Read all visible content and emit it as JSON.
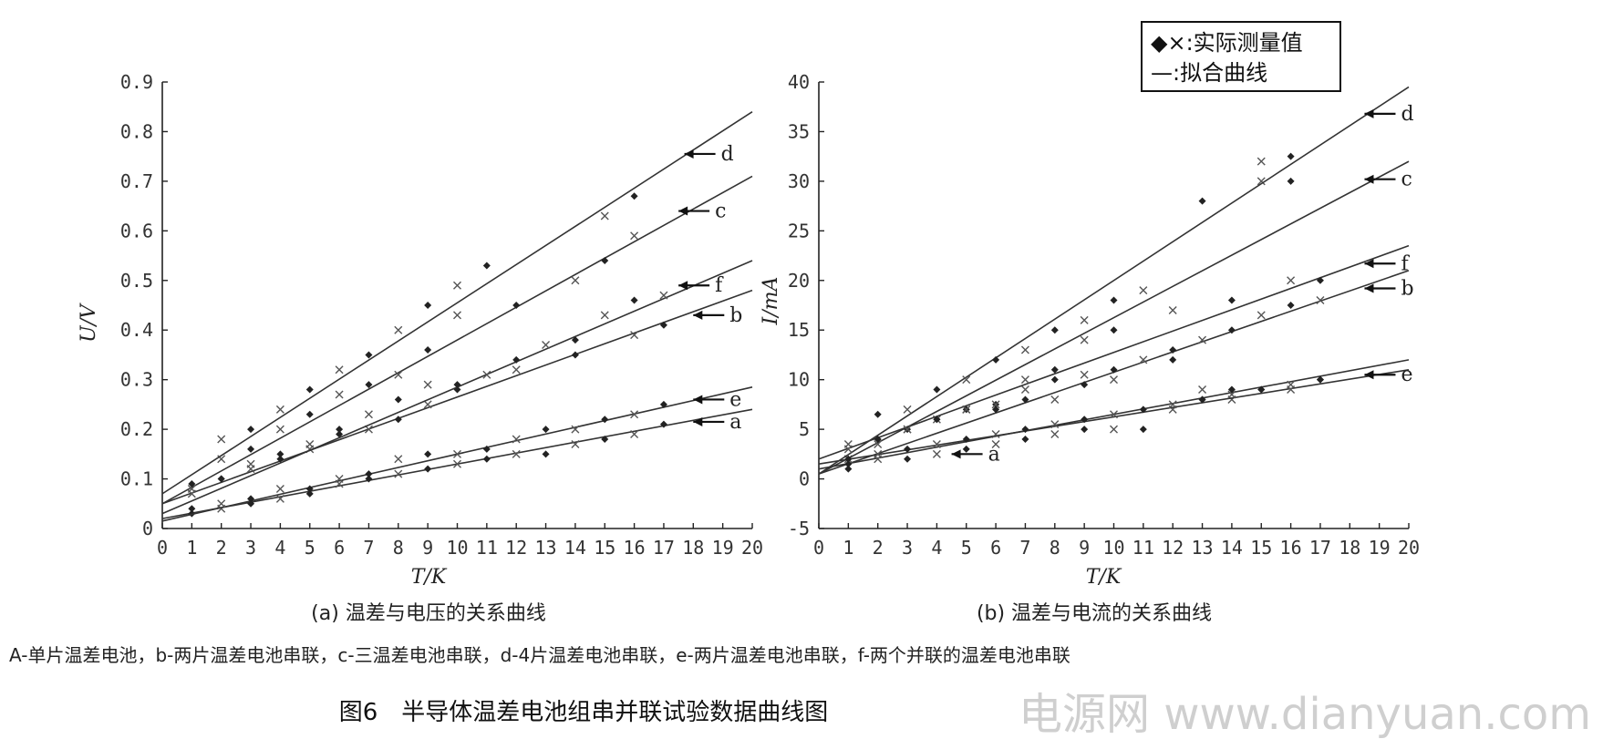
{
  "legend": {
    "measured": "◆×:实际测量值",
    "fitted": "—:拟合曲线"
  },
  "note": "A-单片温差电池，b-两片温差电池串联，c-三温差电池串联，d-4片温差电池串联，e-两片温差电池串联，f-两个并联的温差电池串联",
  "figure_title": "图6　半导体温差电池组串并联试验数据曲线图",
  "watermark": "电源网  www.dianyuan.com",
  "chart_data": [
    {
      "id": "a",
      "type": "scatter",
      "caption": "(a) 温差与电压的关系曲线",
      "xlabel": "T/K",
      "ylabel": "U/V",
      "xlim": [
        0,
        20
      ],
      "ylim": [
        0,
        0.9
      ],
      "xticks": [
        "0",
        "1",
        "2",
        "3",
        "4",
        "5",
        "6",
        "7",
        "8",
        "9",
        "10",
        "11",
        "12",
        "13",
        "14",
        "15",
        "16",
        "17",
        "18",
        "19",
        "20"
      ],
      "yticks": [
        "0",
        "0.1",
        "0.2",
        "0.3",
        "0.4",
        "0.5",
        "0.6",
        "0.7",
        "0.8",
        "0.9"
      ],
      "series": [
        {
          "name": "a",
          "fit": [
            [
              0,
              0.02
            ],
            [
              20,
              0.24
            ]
          ],
          "label_at": [
            18,
            0.215
          ],
          "points": [
            [
              1,
              0.03
            ],
            [
              2,
              0.04
            ],
            [
              3,
              0.05
            ],
            [
              4,
              0.06
            ],
            [
              5,
              0.07
            ],
            [
              6,
              0.09
            ],
            [
              7,
              0.1
            ],
            [
              8,
              0.11
            ],
            [
              9,
              0.12
            ],
            [
              10,
              0.13
            ],
            [
              11,
              0.14
            ],
            [
              12,
              0.15
            ],
            [
              13,
              0.15
            ],
            [
              14,
              0.17
            ],
            [
              15,
              0.18
            ],
            [
              16,
              0.19
            ],
            [
              17,
              0.21
            ]
          ]
        },
        {
          "name": "b",
          "fit": [
            [
              0,
              0.05
            ],
            [
              20,
              0.48
            ]
          ],
          "label_at": [
            18,
            0.43
          ],
          "points": [
            [
              1,
              0.07
            ],
            [
              2,
              0.1
            ],
            [
              3,
              0.12
            ],
            [
              4,
              0.14
            ],
            [
              5,
              0.16
            ],
            [
              6,
              0.19
            ],
            [
              7,
              0.2
            ],
            [
              8,
              0.22
            ],
            [
              9,
              0.25
            ],
            [
              10,
              0.28
            ],
            [
              12,
              0.32
            ],
            [
              14,
              0.35
            ],
            [
              16,
              0.39
            ],
            [
              17,
              0.41
            ]
          ]
        },
        {
          "name": "c",
          "fit": [
            [
              0,
              0.05
            ],
            [
              20,
              0.71
            ]
          ],
          "label_at": [
            17.5,
            0.64
          ],
          "points": [
            [
              1,
              0.09
            ],
            [
              2,
              0.14
            ],
            [
              3,
              0.16
            ],
            [
              4,
              0.2
            ],
            [
              5,
              0.23
            ],
            [
              6,
              0.27
            ],
            [
              7,
              0.29
            ],
            [
              8,
              0.31
            ],
            [
              9,
              0.36
            ],
            [
              10,
              0.43
            ],
            [
              12,
              0.45
            ],
            [
              14,
              0.5
            ],
            [
              15,
              0.54
            ],
            [
              16,
              0.59
            ]
          ]
        },
        {
          "name": "d",
          "fit": [
            [
              0,
              0.07
            ],
            [
              20,
              0.84
            ]
          ],
          "label_at": [
            17.7,
            0.755
          ],
          "points": [
            [
              2,
              0.18
            ],
            [
              3,
              0.2
            ],
            [
              4,
              0.24
            ],
            [
              5,
              0.28
            ],
            [
              6,
              0.32
            ],
            [
              7,
              0.35
            ],
            [
              8,
              0.4
            ],
            [
              9,
              0.45
            ],
            [
              10,
              0.49
            ],
            [
              11,
              0.53
            ],
            [
              15,
              0.63
            ],
            [
              16,
              0.67
            ]
          ]
        },
        {
          "name": "e",
          "fit": [
            [
              0,
              0.015
            ],
            [
              20,
              0.285
            ]
          ],
          "label_at": [
            18,
            0.26
          ],
          "points": [
            [
              1,
              0.04
            ],
            [
              2,
              0.05
            ],
            [
              3,
              0.06
            ],
            [
              4,
              0.08
            ],
            [
              5,
              0.08
            ],
            [
              6,
              0.1
            ],
            [
              7,
              0.11
            ],
            [
              8,
              0.14
            ],
            [
              9,
              0.15
            ],
            [
              10,
              0.15
            ],
            [
              11,
              0.16
            ],
            [
              12,
              0.18
            ],
            [
              13,
              0.2
            ],
            [
              14,
              0.2
            ],
            [
              15,
              0.22
            ],
            [
              16,
              0.23
            ],
            [
              17,
              0.25
            ]
          ]
        },
        {
          "name": "f",
          "fit": [
            [
              0,
              0.03
            ],
            [
              20,
              0.54
            ]
          ],
          "label_at": [
            17.5,
            0.49
          ],
          "points": [
            [
              1,
              0.08
            ],
            [
              2,
              0.1
            ],
            [
              3,
              0.13
            ],
            [
              4,
              0.15
            ],
            [
              5,
              0.17
            ],
            [
              6,
              0.2
            ],
            [
              7,
              0.23
            ],
            [
              8,
              0.26
            ],
            [
              9,
              0.29
            ],
            [
              10,
              0.29
            ],
            [
              11,
              0.31
            ],
            [
              12,
              0.34
            ],
            [
              13,
              0.37
            ],
            [
              14,
              0.38
            ],
            [
              15,
              0.43
            ],
            [
              16,
              0.46
            ],
            [
              17,
              0.47
            ]
          ]
        }
      ]
    },
    {
      "id": "b",
      "type": "scatter",
      "caption": "(b) 温差与电流的关系曲线",
      "xlabel": "T/K",
      "ylabel": "I/mA",
      "xlim": [
        0,
        20
      ],
      "ylim": [
        -5,
        40
      ],
      "xticks": [
        "0",
        "1",
        "2",
        "3",
        "4",
        "5",
        "6",
        "7",
        "8",
        "9",
        "10",
        "11",
        "12",
        "13",
        "14",
        "15",
        "16",
        "17",
        "18",
        "19",
        "20"
      ],
      "yticks": [
        "-5",
        "0",
        "5",
        "10",
        "15",
        "20",
        "25",
        "30",
        "35",
        "40"
      ],
      "series": [
        {
          "name": "a",
          "fit": [
            [
              0,
              1
            ],
            [
              20,
              12
            ]
          ],
          "label_at": [
            4.5,
            2.5
          ],
          "points": [
            [
              1,
              1
            ],
            [
              2,
              2
            ],
            [
              3,
              2
            ],
            [
              4,
              2.5
            ],
            [
              5,
              3
            ],
            [
              6,
              3.5
            ],
            [
              7,
              4
            ],
            [
              8,
              4.5
            ],
            [
              9,
              5
            ],
            [
              10,
              5
            ],
            [
              11,
              5
            ],
            [
              12,
              7
            ],
            [
              13,
              8
            ],
            [
              14,
              8
            ],
            [
              15,
              9
            ],
            [
              16,
              9.5
            ],
            [
              17,
              10
            ]
          ]
        },
        {
          "name": "b",
          "fit": [
            [
              0,
              0.5
            ],
            [
              20,
              21
            ]
          ],
          "label_at": [
            18.5,
            19.2
          ],
          "points": [
            [
              1,
              2
            ],
            [
              2,
              4
            ],
            [
              3,
              5
            ],
            [
              4,
              6
            ],
            [
              5,
              7
            ],
            [
              6,
              7.5
            ],
            [
              7,
              9
            ],
            [
              8,
              10
            ],
            [
              9,
              10.5
            ],
            [
              10,
              11
            ],
            [
              11,
              12
            ],
            [
              12,
              13
            ],
            [
              13,
              14
            ],
            [
              14,
              15
            ],
            [
              15,
              16.5
            ],
            [
              16,
              17.5
            ],
            [
              17,
              18
            ]
          ]
        },
        {
          "name": "c",
          "fit": [
            [
              0,
              0.5
            ],
            [
              20,
              32
            ]
          ],
          "label_at": [
            18.5,
            30.2
          ],
          "points": [
            [
              1,
              1.5
            ],
            [
              2,
              3.5
            ],
            [
              3,
              5
            ],
            [
              4,
              6
            ],
            [
              5,
              7
            ],
            [
              6,
              7.5
            ],
            [
              7,
              8
            ],
            [
              8,
              8
            ],
            [
              9,
              9.5
            ],
            [
              10,
              10
            ],
            [
              12,
              12
            ],
            [
              13,
              9
            ],
            [
              14,
              9
            ],
            [
              15,
              30
            ],
            [
              16,
              30
            ]
          ]
        },
        {
          "name": "d",
          "fit": [
            [
              0,
              0.5
            ],
            [
              20,
              39.5
            ]
          ],
          "label_at": [
            18.5,
            36.8
          ],
          "points": [
            [
              1,
              3.5
            ],
            [
              2,
              6.5
            ],
            [
              3,
              7
            ],
            [
              4,
              9
            ],
            [
              5,
              10
            ],
            [
              6,
              12
            ],
            [
              7,
              13
            ],
            [
              8,
              15
            ],
            [
              9,
              16
            ],
            [
              10,
              18
            ],
            [
              11,
              19
            ],
            [
              13,
              28
            ],
            [
              15,
              32
            ],
            [
              16,
              32.5
            ]
          ]
        },
        {
          "name": "e",
          "fit": [
            [
              0,
              1.5
            ],
            [
              20,
              11
            ]
          ],
          "label_at": [
            18.5,
            10.5
          ],
          "points": [
            [
              1,
              2
            ],
            [
              2,
              2.5
            ],
            [
              3,
              3
            ],
            [
              4,
              3.5
            ],
            [
              5,
              4
            ],
            [
              6,
              4.5
            ],
            [
              7,
              5
            ],
            [
              8,
              5.5
            ],
            [
              9,
              6
            ],
            [
              10,
              6.5
            ],
            [
              11,
              7
            ],
            [
              12,
              7.5
            ],
            [
              13,
              8
            ],
            [
              14,
              8.5
            ],
            [
              15,
              9
            ],
            [
              16,
              9
            ],
            [
              17,
              10
            ]
          ]
        },
        {
          "name": "f",
          "fit": [
            [
              0,
              2
            ],
            [
              20,
              23.5
            ]
          ],
          "label_at": [
            18.5,
            21.7
          ],
          "points": [
            [
              1,
              3
            ],
            [
              2,
              4
            ],
            [
              3,
              5
            ],
            [
              4,
              6
            ],
            [
              5,
              7
            ],
            [
              6,
              7
            ],
            [
              7,
              10
            ],
            [
              8,
              11
            ],
            [
              9,
              14
            ],
            [
              10,
              15
            ],
            [
              12,
              17
            ],
            [
              14,
              18
            ],
            [
              16,
              20
            ],
            [
              17,
              20
            ]
          ]
        }
      ]
    }
  ]
}
